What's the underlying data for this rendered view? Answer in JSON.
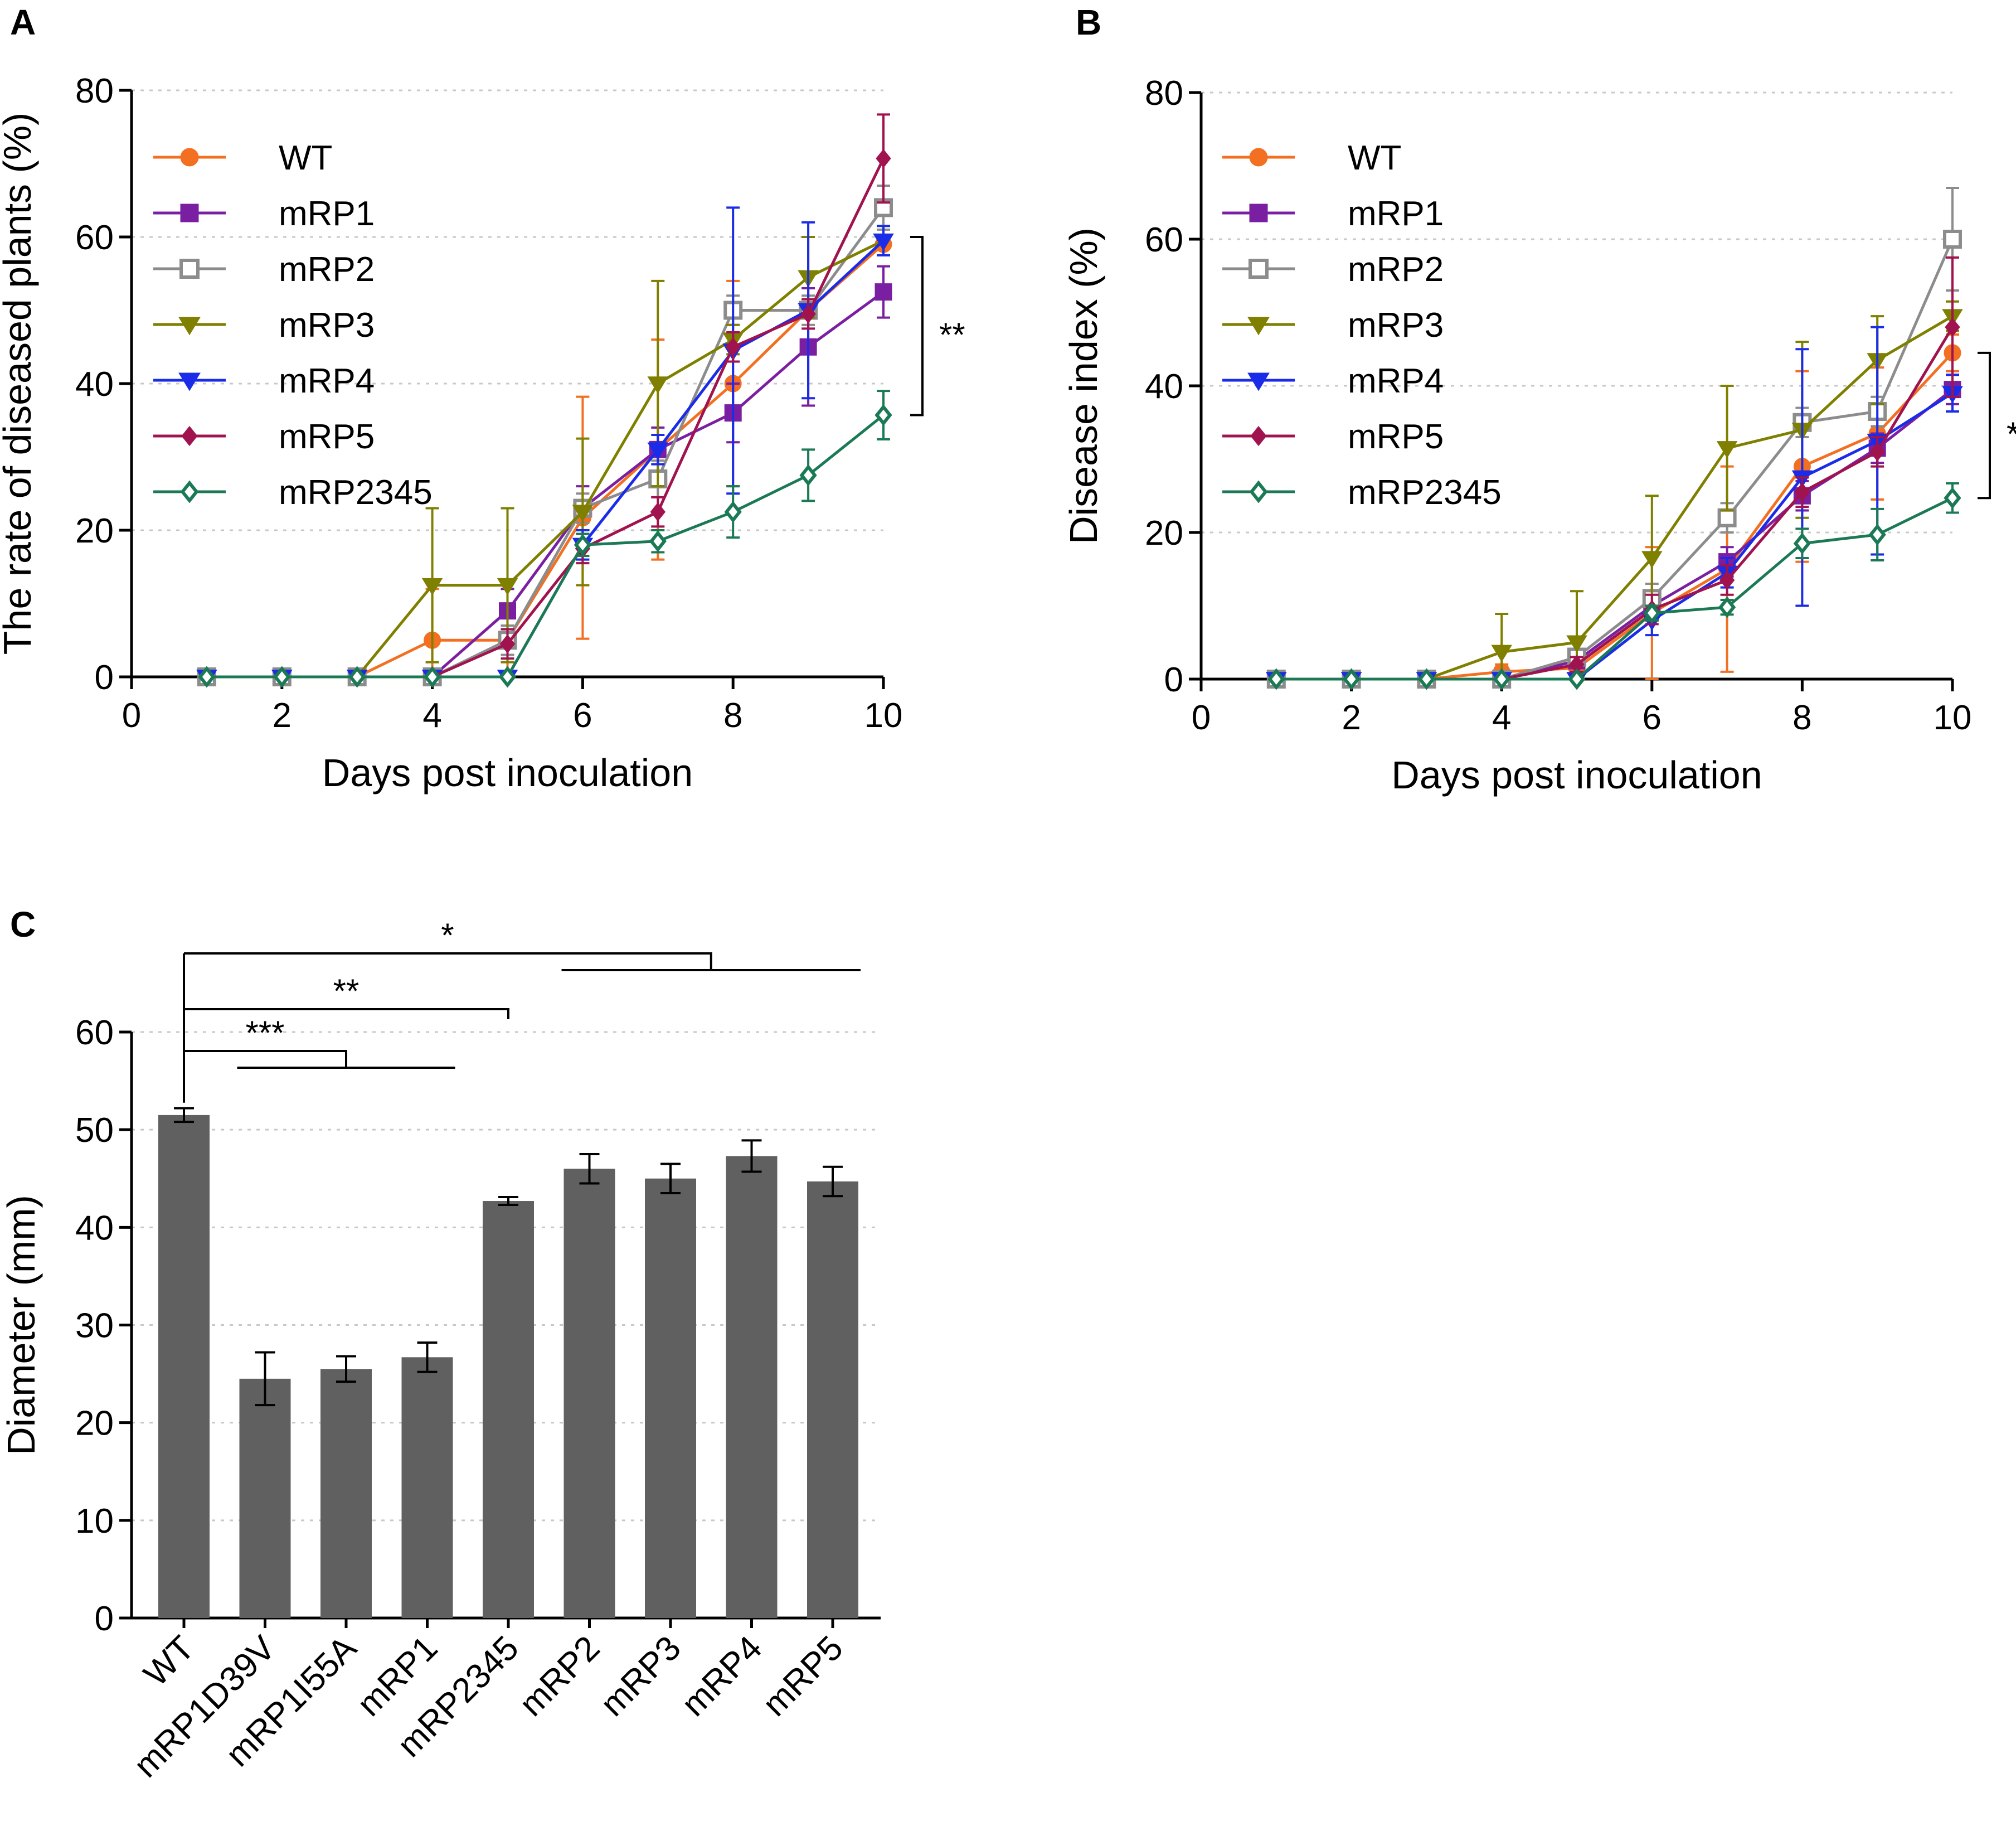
{
  "chart_data": [
    {
      "panel": "A",
      "type": "line",
      "xlabel": "Days post inoculation",
      "ylabel": "The rate of diseased plants (%)",
      "xlim": [
        0,
        10
      ],
      "ylim": [
        0,
        80
      ],
      "xticks": [
        0,
        2,
        4,
        6,
        8,
        10
      ],
      "yticks": [
        0,
        20,
        40,
        60,
        80
      ],
      "grid": true,
      "legend_position": "top-left",
      "x": [
        1,
        2,
        3,
        4,
        5,
        6,
        7,
        8,
        9,
        10
      ],
      "series": [
        {
          "name": "WT",
          "color": "#f36f21",
          "marker": "circle",
          "values": [
            0,
            0,
            0,
            5,
            5,
            21.7,
            31,
            40,
            50,
            59
          ],
          "errors": [
            0,
            0,
            0,
            7,
            7,
            16.5,
            15,
            14,
            0,
            0
          ]
        },
        {
          "name": "mRP1",
          "color": "#7b1fa2",
          "marker": "square",
          "values": [
            0,
            0,
            0,
            0,
            9,
            23,
            31,
            36,
            45,
            52.5
          ],
          "errors": [
            0,
            0,
            0,
            0,
            3,
            3,
            3,
            4,
            8,
            3.5
          ]
        },
        {
          "name": "mRP2",
          "color": "#8c8c8c",
          "marker": "square-open",
          "values": [
            0,
            0,
            0,
            0,
            5,
            23,
            27,
            50,
            50,
            64
          ],
          "errors": [
            0,
            0,
            0,
            0,
            2,
            2,
            2.5,
            2,
            2,
            3
          ]
        },
        {
          "name": "mRP3",
          "color": "#7f7f00",
          "marker": "triangle-down",
          "values": [
            0,
            0,
            0,
            12.5,
            12.5,
            22.5,
            40,
            46,
            54.5,
            59.5
          ],
          "errors": [
            0,
            0,
            0,
            10.5,
            10.5,
            10,
            14,
            2,
            5.5,
            2
          ]
        },
        {
          "name": "mRP4",
          "color": "#1a2ce8",
          "marker": "triangle-down",
          "values": [
            0,
            0,
            0,
            0,
            0,
            18,
            31,
            44.5,
            50,
            59.5
          ],
          "errors": [
            0,
            0,
            0,
            0,
            0,
            2,
            2,
            19.5,
            12,
            2
          ]
        },
        {
          "name": "mRP5",
          "color": "#a0134e",
          "marker": "diamond",
          "values": [
            0,
            0,
            0,
            0,
            4.5,
            17.5,
            22.5,
            45,
            49.5,
            70.7
          ],
          "errors": [
            0,
            0,
            0,
            0,
            2,
            2,
            2,
            2,
            2,
            6
          ]
        },
        {
          "name": "mRP2345",
          "color": "#1b7a55",
          "marker": "diamond-open",
          "values": [
            0,
            0,
            0,
            0,
            0,
            18,
            18.5,
            22.5,
            27.5,
            35.7
          ],
          "errors": [
            0,
            0,
            0,
            0,
            0,
            1.5,
            1.5,
            3.5,
            3.5,
            3.3
          ]
        }
      ],
      "significance": {
        "label": "**",
        "from": 35.7,
        "to": 60
      }
    },
    {
      "panel": "B",
      "type": "line",
      "xlabel": "Days post inoculation",
      "ylabel": "Disease index (%)",
      "xlim": [
        0,
        10
      ],
      "ylim": [
        0,
        80
      ],
      "xticks": [
        0,
        2,
        4,
        6,
        8,
        10
      ],
      "yticks": [
        0,
        20,
        40,
        60,
        80
      ],
      "grid": true,
      "legend_position": "top-left",
      "x": [
        1,
        2,
        3,
        4,
        5,
        6,
        7,
        8,
        9,
        10
      ],
      "series": [
        {
          "name": "WT",
          "color": "#f36f21",
          "marker": "circle",
          "values": [
            0,
            0,
            0,
            1,
            1.5,
            9,
            15,
            29,
            33.5,
            44.5
          ],
          "errors": [
            0,
            0,
            0,
            1,
            1,
            9,
            14,
            13,
            9,
            2.5
          ]
        },
        {
          "name": "mRP1",
          "color": "#7b1fa2",
          "marker": "square",
          "values": [
            0,
            0,
            0,
            0,
            2.5,
            10,
            16,
            25,
            31.5,
            39.5
          ],
          "errors": [
            0,
            0,
            0,
            0,
            1,
            2,
            2,
            2,
            2,
            2
          ]
        },
        {
          "name": "mRP2",
          "color": "#8c8c8c",
          "marker": "square-open",
          "values": [
            0,
            0,
            0,
            0,
            3,
            11,
            22,
            35,
            36.5,
            60
          ],
          "errors": [
            0,
            0,
            0,
            0,
            1,
            2,
            2,
            2,
            2,
            7
          ]
        },
        {
          "name": "mRP3",
          "color": "#7f7f00",
          "marker": "triangle-down",
          "values": [
            0,
            0,
            0,
            3.7,
            5,
            16.5,
            31.5,
            34,
            43.5,
            49.5
          ],
          "errors": [
            0,
            0,
            0,
            5.2,
            7,
            8.5,
            8.5,
            12,
            6,
            2
          ]
        },
        {
          "name": "mRP4",
          "color": "#1a2ce8",
          "marker": "triangle-down",
          "values": [
            0,
            0,
            0,
            0,
            0,
            8,
            14.5,
            27.5,
            32.5,
            39
          ],
          "errors": [
            0,
            0,
            0,
            0,
            0,
            2,
            2,
            17.5,
            15.5,
            2.5
          ]
        },
        {
          "name": "mRP5",
          "color": "#a0134e",
          "marker": "diamond",
          "values": [
            0,
            0,
            0,
            0,
            2,
            9.5,
            13.5,
            25.5,
            31,
            48
          ],
          "errors": [
            0,
            0,
            0,
            0,
            1,
            2,
            2,
            2,
            2,
            9.5
          ]
        },
        {
          "name": "mRP2345",
          "color": "#1b7a55",
          "marker": "diamond-open",
          "values": [
            0,
            0,
            0,
            0,
            0,
            9,
            9.8,
            18.5,
            19.7,
            24.7
          ],
          "errors": [
            0,
            0,
            0,
            0,
            0,
            1,
            1,
            2,
            3.5,
            2
          ]
        }
      ],
      "significance": {
        "label": "*",
        "from": 24.7,
        "to": 44.5
      }
    },
    {
      "panel": "C",
      "type": "bar",
      "ylabel": "Diameter (mm)",
      "ylim": [
        0,
        60
      ],
      "yticks": [
        0,
        10,
        20,
        30,
        40,
        50,
        60
      ],
      "grid": true,
      "bar_color": "#606060",
      "categories": [
        "WT",
        "mRP1D39V",
        "mRP1I55A",
        "mRP1",
        "mRP2345",
        "mRP2",
        "mRP3",
        "mRP4",
        "mRP5"
      ],
      "values": [
        51.5,
        24.5,
        25.5,
        26.7,
        42.7,
        46,
        45,
        47.3,
        44.7
      ],
      "errors": [
        0.7,
        2.7,
        1.3,
        1.5,
        0.4,
        1.5,
        1.5,
        1.6,
        1.5
      ],
      "significance": [
        {
          "label": "***",
          "reference": "WT",
          "group": [
            "mRP1D39V",
            "mRP1I55A",
            "mRP1"
          ]
        },
        {
          "label": "**",
          "reference": "WT",
          "group": [
            "mRP2345"
          ]
        },
        {
          "label": "*",
          "reference": "WT",
          "group": [
            "mRP2",
            "mRP3",
            "mRP4",
            "mRP5"
          ]
        }
      ]
    }
  ]
}
